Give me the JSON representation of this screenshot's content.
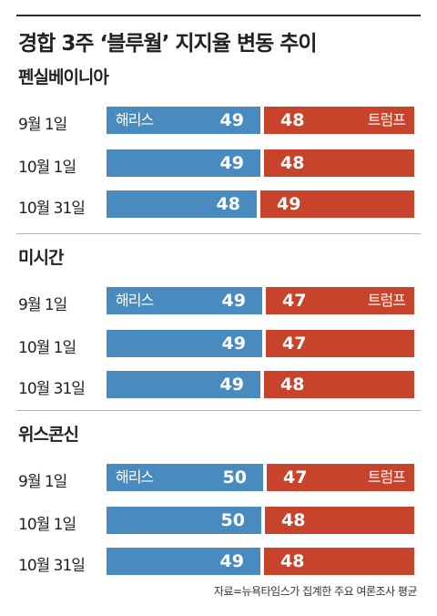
{
  "chart_data": {
    "type": "bar",
    "title": "경합 3주 ‘블루월’ 지지율 변동 추이",
    "candidates": [
      "해리스",
      "트럼프"
    ],
    "colors": {
      "harris": "#4a8bbf",
      "trump": "#c8432b"
    },
    "groups": [
      {
        "state": "펜실베이니아",
        "rows": [
          {
            "date": "9월 1일",
            "harris": 49,
            "trump": 48
          },
          {
            "date": "10월 1일",
            "harris": 49,
            "trump": 48
          },
          {
            "date": "10월 31일",
            "harris": 48,
            "trump": 49
          }
        ]
      },
      {
        "state": "미시간",
        "rows": [
          {
            "date": "9월 1일",
            "harris": 49,
            "trump": 47
          },
          {
            "date": "10월 1일",
            "harris": 49,
            "trump": 47
          },
          {
            "date": "10월 31일",
            "harris": 49,
            "trump": 48
          }
        ]
      },
      {
        "state": "위스콘신",
        "rows": [
          {
            "date": "9월 1일",
            "harris": 50,
            "trump": 47
          },
          {
            "date": "10월 1일",
            "harris": 50,
            "trump": 48
          },
          {
            "date": "10월 31일",
            "harris": 49,
            "trump": 48
          }
        ]
      }
    ],
    "source": "자료=뉴욕타임스가 집계한 주요 여론조사 평균"
  }
}
